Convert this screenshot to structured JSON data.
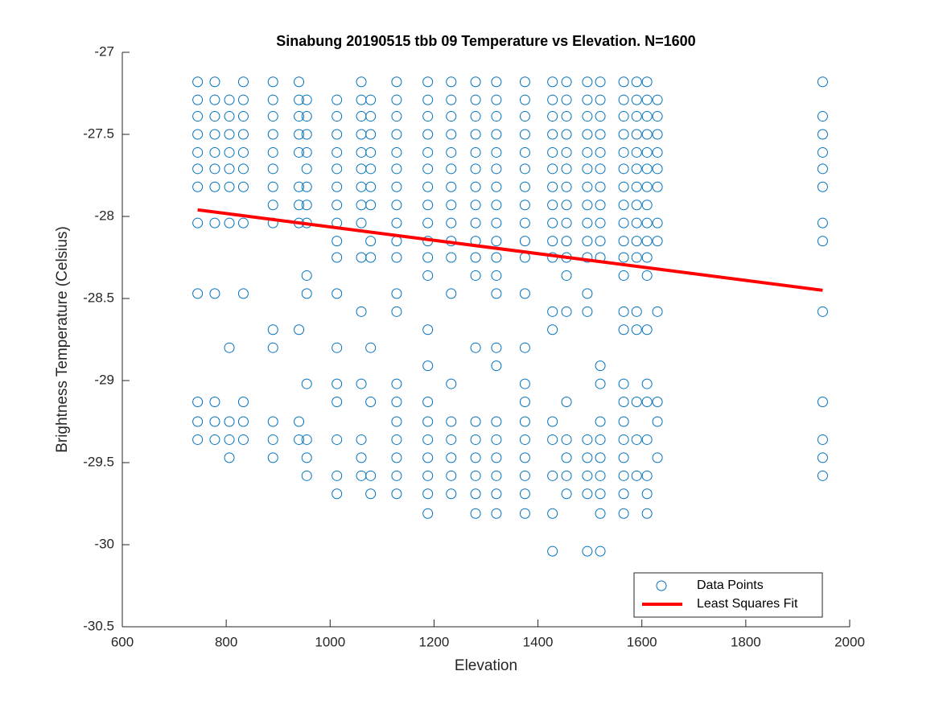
{
  "chart_data": {
    "type": "scatter",
    "title": "Sinabung 20190515 tbb 09 Temperature vs Elevation. N=1600",
    "x_label": "Elevation",
    "y_label": "Brightness Temperature (Celsius)",
    "xlim": [
      600,
      2000
    ],
    "xticks": [
      600,
      800,
      1000,
      1200,
      1400,
      1600,
      1800,
      2000
    ],
    "ylim": [
      -30.5,
      -27
    ],
    "yticks": [
      -30.5,
      -30,
      -29.5,
      -29,
      -28.5,
      -28,
      -27.5,
      -27
    ],
    "grid": false,
    "legend": "southeast",
    "series": [
      {
        "name": "Data Points",
        "color": "#0072bd",
        "style": "marker",
        "x": [
          745,
          745,
          745,
          745,
          745,
          745,
          745,
          745,
          745,
          745,
          745,
          745,
          778,
          778,
          778,
          778,
          778,
          778,
          778,
          778,
          778,
          778,
          778,
          778,
          806,
          806,
          806,
          806,
          806,
          806,
          806,
          806,
          806,
          806,
          806,
          833,
          833,
          833,
          833,
          833,
          833,
          833,
          833,
          833,
          833,
          833,
          833,
          890,
          890,
          890,
          890,
          890,
          890,
          890,
          890,
          890,
          890,
          890,
          890,
          890,
          890,
          940,
          940,
          940,
          940,
          940,
          940,
          940,
          940,
          940,
          940,
          940,
          955,
          955,
          955,
          955,
          955,
          955,
          955,
          955,
          955,
          955,
          955,
          955,
          955,
          955,
          1013,
          1013,
          1013,
          1013,
          1013,
          1013,
          1013,
          1013,
          1013,
          1013,
          1013,
          1013,
          1013,
          1013,
          1013,
          1013,
          1013,
          1060,
          1060,
          1060,
          1060,
          1060,
          1060,
          1060,
          1060,
          1060,
          1060,
          1060,
          1060,
          1060,
          1060,
          1060,
          1078,
          1078,
          1078,
          1078,
          1078,
          1078,
          1078,
          1078,
          1078,
          1078,
          1078,
          1078,
          1078,
          1128,
          1128,
          1128,
          1128,
          1128,
          1128,
          1128,
          1128,
          1128,
          1128,
          1128,
          1128,
          1128,
          1128,
          1128,
          1128,
          1128,
          1128,
          1128,
          1128,
          1188,
          1188,
          1188,
          1188,
          1188,
          1188,
          1188,
          1188,
          1188,
          1188,
          1188,
          1188,
          1188,
          1188,
          1188,
          1188,
          1188,
          1188,
          1188,
          1188,
          1188,
          1233,
          1233,
          1233,
          1233,
          1233,
          1233,
          1233,
          1233,
          1233,
          1233,
          1233,
          1233,
          1233,
          1233,
          1233,
          1233,
          1233,
          1233,
          1280,
          1280,
          1280,
          1280,
          1280,
          1280,
          1280,
          1280,
          1280,
          1280,
          1280,
          1280,
          1280,
          1280,
          1280,
          1280,
          1280,
          1280,
          1280,
          1320,
          1320,
          1320,
          1320,
          1320,
          1320,
          1320,
          1320,
          1320,
          1320,
          1320,
          1320,
          1320,
          1320,
          1320,
          1320,
          1320,
          1320,
          1320,
          1320,
          1320,
          1375,
          1375,
          1375,
          1375,
          1375,
          1375,
          1375,
          1375,
          1375,
          1375,
          1375,
          1375,
          1375,
          1375,
          1375,
          1375,
          1375,
          1375,
          1375,
          1375,
          1375,
          1428,
          1428,
          1428,
          1428,
          1428,
          1428,
          1428,
          1428,
          1428,
          1428,
          1428,
          1428,
          1428,
          1428,
          1428,
          1428,
          1428,
          1428,
          1455,
          1455,
          1455,
          1455,
          1455,
          1455,
          1455,
          1455,
          1455,
          1455,
          1455,
          1455,
          1455,
          1455,
          1455,
          1455,
          1455,
          1455,
          1495,
          1495,
          1495,
          1495,
          1495,
          1495,
          1495,
          1495,
          1495,
          1495,
          1495,
          1495,
          1495,
          1495,
          1495,
          1495,
          1495,
          1495,
          1520,
          1520,
          1520,
          1520,
          1520,
          1520,
          1520,
          1520,
          1520,
          1520,
          1520,
          1520,
          1520,
          1520,
          1520,
          1520,
          1520,
          1520,
          1520,
          1520,
          1565,
          1565,
          1565,
          1565,
          1565,
          1565,
          1565,
          1565,
          1565,
          1565,
          1565,
          1565,
          1565,
          1565,
          1565,
          1565,
          1565,
          1565,
          1565,
          1565,
          1565,
          1565,
          1590,
          1590,
          1590,
          1590,
          1590,
          1590,
          1590,
          1590,
          1590,
          1590,
          1590,
          1590,
          1590,
          1590,
          1590,
          1590,
          1610,
          1610,
          1610,
          1610,
          1610,
          1610,
          1610,
          1610,
          1610,
          1610,
          1610,
          1610,
          1610,
          1610,
          1610,
          1610,
          1610,
          1610,
          1610,
          1630,
          1630,
          1630,
          1630,
          1630,
          1630,
          1630,
          1630,
          1630,
          1630,
          1630,
          1630,
          1948,
          1948,
          1948,
          1948,
          1948,
          1948,
          1948,
          1948,
          1948,
          1948,
          1948,
          1948,
          1948
        ],
        "values": [
          -27.18,
          -27.29,
          -27.39,
          -27.5,
          -27.61,
          -27.71,
          -27.82,
          -28.04,
          -28.47,
          -29.13,
          -29.25,
          -29.36,
          -27.18,
          -27.29,
          -27.39,
          -27.5,
          -27.61,
          -27.71,
          -27.82,
          -28.04,
          -28.47,
          -29.13,
          -29.25,
          -29.36,
          -27.29,
          -27.39,
          -27.5,
          -27.61,
          -27.71,
          -27.82,
          -28.04,
          -28.8,
          -29.25,
          -29.36,
          -29.47,
          -27.18,
          -27.29,
          -27.39,
          -27.5,
          -27.61,
          -27.71,
          -27.82,
          -28.04,
          -28.47,
          -29.13,
          -29.25,
          -29.36,
          -27.18,
          -27.29,
          -27.39,
          -27.5,
          -27.61,
          -27.71,
          -27.82,
          -27.93,
          -28.04,
          -28.69,
          -28.8,
          -29.25,
          -29.36,
          -29.47,
          -27.18,
          -27.29,
          -27.39,
          -27.5,
          -27.61,
          -27.82,
          -27.93,
          -28.04,
          -28.69,
          -29.25,
          -29.36,
          -27.29,
          -27.39,
          -27.5,
          -27.61,
          -27.71,
          -27.82,
          -27.93,
          -28.04,
          -28.36,
          -28.47,
          -29.02,
          -29.36,
          -29.47,
          -29.58,
          -27.29,
          -27.39,
          -27.5,
          -27.61,
          -27.71,
          -27.82,
          -27.93,
          -28.04,
          -28.15,
          -28.25,
          -28.47,
          -28.8,
          -29.02,
          -29.13,
          -29.36,
          -29.58,
          -29.69,
          -27.18,
          -27.29,
          -27.39,
          -27.5,
          -27.61,
          -27.71,
          -27.82,
          -27.93,
          -28.04,
          -28.25,
          -28.58,
          -29.02,
          -29.36,
          -29.47,
          -29.58,
          -27.29,
          -27.39,
          -27.5,
          -27.61,
          -27.71,
          -27.82,
          -27.93,
          -28.15,
          -28.25,
          -28.8,
          -29.13,
          -29.58,
          -29.69,
          -27.18,
          -27.29,
          -27.39,
          -27.5,
          -27.61,
          -27.71,
          -27.82,
          -27.93,
          -28.04,
          -28.15,
          -28.25,
          -28.47,
          -28.58,
          -29.02,
          -29.13,
          -29.25,
          -29.36,
          -29.47,
          -29.58,
          -29.69,
          -27.18,
          -27.29,
          -27.39,
          -27.5,
          -27.61,
          -27.71,
          -27.82,
          -27.93,
          -28.04,
          -28.15,
          -28.25,
          -28.36,
          -28.69,
          -28.91,
          -29.13,
          -29.25,
          -29.36,
          -29.47,
          -29.58,
          -29.69,
          -29.81,
          -27.18,
          -27.29,
          -27.39,
          -27.5,
          -27.61,
          -27.71,
          -27.82,
          -27.93,
          -28.04,
          -28.15,
          -28.25,
          -28.47,
          -29.02,
          -29.25,
          -29.36,
          -29.47,
          -29.58,
          -29.69,
          -27.18,
          -27.29,
          -27.39,
          -27.5,
          -27.61,
          -27.71,
          -27.82,
          -27.93,
          -28.04,
          -28.15,
          -28.25,
          -28.36,
          -28.8,
          -29.25,
          -29.36,
          -29.47,
          -29.58,
          -29.69,
          -29.81,
          -27.18,
          -27.29,
          -27.39,
          -27.5,
          -27.61,
          -27.71,
          -27.82,
          -27.93,
          -28.04,
          -28.15,
          -28.25,
          -28.36,
          -28.47,
          -28.8,
          -28.91,
          -29.25,
          -29.36,
          -29.47,
          -29.58,
          -29.69,
          -29.81,
          -27.18,
          -27.29,
          -27.39,
          -27.5,
          -27.61,
          -27.71,
          -27.82,
          -27.93,
          -28.04,
          -28.15,
          -28.25,
          -28.47,
          -28.8,
          -29.02,
          -29.13,
          -29.25,
          -29.36,
          -29.47,
          -29.58,
          -29.69,
          -29.81,
          -27.18,
          -27.29,
          -27.39,
          -27.5,
          -27.61,
          -27.71,
          -27.82,
          -27.93,
          -28.04,
          -28.15,
          -28.25,
          -28.58,
          -28.69,
          -29.25,
          -29.36,
          -29.58,
          -29.81,
          -30.04,
          -27.18,
          -27.29,
          -27.39,
          -27.5,
          -27.61,
          -27.71,
          -27.82,
          -27.93,
          -28.04,
          -28.15,
          -28.25,
          -28.36,
          -28.58,
          -29.13,
          -29.36,
          -29.47,
          -29.58,
          -29.69,
          -27.18,
          -27.29,
          -27.39,
          -27.5,
          -27.61,
          -27.71,
          -27.82,
          -27.93,
          -28.04,
          -28.15,
          -28.25,
          -28.47,
          -28.58,
          -29.36,
          -29.47,
          -29.58,
          -29.69,
          -30.04,
          -27.18,
          -27.29,
          -27.39,
          -27.5,
          -27.61,
          -27.71,
          -27.82,
          -27.93,
          -28.04,
          -28.15,
          -28.25,
          -28.91,
          -29.02,
          -29.25,
          -29.36,
          -29.47,
          -29.58,
          -29.69,
          -29.81,
          -30.04,
          -27.18,
          -27.29,
          -27.39,
          -27.5,
          -27.61,
          -27.71,
          -27.82,
          -27.93,
          -28.04,
          -28.15,
          -28.25,
          -28.36,
          -28.58,
          -28.69,
          -29.02,
          -29.13,
          -29.25,
          -29.36,
          -29.47,
          -29.58,
          -29.69,
          -29.81,
          -27.18,
          -27.29,
          -27.39,
          -27.5,
          -27.61,
          -27.71,
          -27.82,
          -27.93,
          -28.04,
          -28.15,
          -28.25,
          -28.58,
          -28.69,
          -29.13,
          -29.36,
          -29.58,
          -27.18,
          -27.29,
          -27.39,
          -27.5,
          -27.61,
          -27.71,
          -27.82,
          -27.93,
          -28.04,
          -28.15,
          -28.25,
          -28.36,
          -28.69,
          -29.02,
          -29.13,
          -29.36,
          -29.58,
          -29.69,
          -29.81,
          -27.29,
          -27.39,
          -27.5,
          -27.61,
          -27.71,
          -27.82,
          -28.04,
          -28.15,
          -28.58,
          -29.13,
          -29.25,
          -29.47,
          -27.18,
          -27.39,
          -27.5,
          -27.61,
          -27.71,
          -27.82,
          -28.04,
          -28.15,
          -28.58,
          -29.13,
          -29.36,
          -29.47,
          -29.58
        ]
      },
      {
        "name": "Least Squares Fit",
        "color": "#ff0000",
        "style": "line",
        "x": [
          745,
          1948
        ],
        "values": [
          -27.96,
          -28.45
        ]
      }
    ]
  }
}
